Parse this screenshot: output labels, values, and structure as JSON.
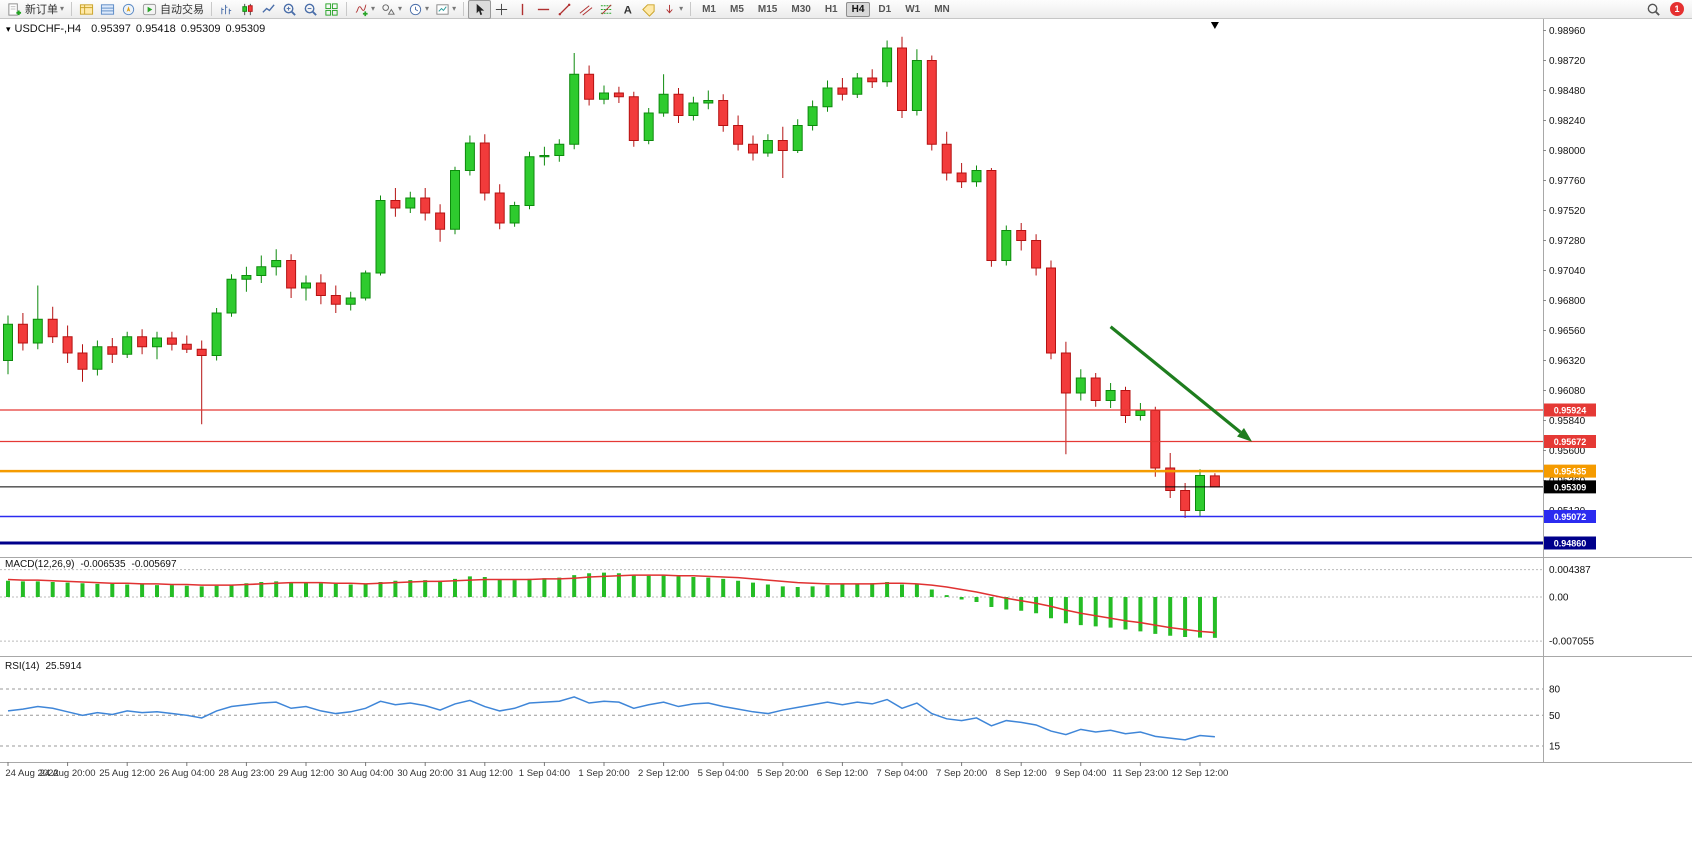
{
  "toolbar": {
    "new_order": "新订单",
    "algo_trading": "自动交易",
    "timeframes": [
      "M1",
      "M5",
      "M15",
      "M30",
      "H1",
      "H4",
      "D1",
      "W1",
      "MN"
    ],
    "active_timeframe": "H4",
    "notification_count": "1",
    "icons": [
      "new-order",
      "market-watch",
      "data-window",
      "navigator",
      "algo-trading",
      "bar-chart",
      "candlestick-chart",
      "line-chart",
      "zoom-in",
      "zoom-out",
      "tile-windows",
      "indicators",
      "objects",
      "period-clock",
      "chart-settings",
      "cursor",
      "crosshair",
      "vertical-line",
      "horizontal-line",
      "trendline",
      "equidistant-channel",
      "fibonacci",
      "text",
      "label",
      "arrows",
      "search",
      "notifications"
    ]
  },
  "chart_header": {
    "symbol_period": "USDCHF-,H4",
    "open": "0.95397",
    "high": "0.95418",
    "low": "0.95309",
    "close": "0.95309"
  },
  "chart_data": [
    {
      "type": "candlestick",
      "title": "USDCHF-,H4",
      "up_color": "#2ecb2e",
      "down_color": "#f23b3b",
      "candles": [
        [
          0.9632,
          0.9668,
          0.9621,
          0.9661
        ],
        [
          0.9661,
          0.967,
          0.964,
          0.9646
        ],
        [
          0.9646,
          0.9692,
          0.9641,
          0.9665
        ],
        [
          0.9665,
          0.9675,
          0.9646,
          0.9651
        ],
        [
          0.9651,
          0.966,
          0.963,
          0.9638
        ],
        [
          0.9638,
          0.9645,
          0.9615,
          0.9625
        ],
        [
          0.9625,
          0.9648,
          0.962,
          0.9643
        ],
        [
          0.9643,
          0.965,
          0.963,
          0.9637
        ],
        [
          0.9637,
          0.9655,
          0.9634,
          0.9651
        ],
        [
          0.9651,
          0.9657,
          0.9637,
          0.9643
        ],
        [
          0.9643,
          0.9655,
          0.9633,
          0.965
        ],
        [
          0.965,
          0.9655,
          0.964,
          0.9645
        ],
        [
          0.9645,
          0.9652,
          0.9638,
          0.9641
        ],
        [
          0.9641,
          0.9648,
          0.9581,
          0.9636
        ],
        [
          0.9636,
          0.9674,
          0.9632,
          0.967
        ],
        [
          0.967,
          0.9701,
          0.9667,
          0.9697
        ],
        [
          0.9697,
          0.9707,
          0.9687,
          0.97
        ],
        [
          0.97,
          0.9716,
          0.9694,
          0.9707
        ],
        [
          0.9707,
          0.9721,
          0.97,
          0.9712
        ],
        [
          0.9712,
          0.9717,
          0.9682,
          0.969
        ],
        [
          0.969,
          0.97,
          0.968,
          0.9694
        ],
        [
          0.9694,
          0.9701,
          0.9677,
          0.9684
        ],
        [
          0.9684,
          0.9692,
          0.967,
          0.9677
        ],
        [
          0.9677,
          0.9687,
          0.9672,
          0.9682
        ],
        [
          0.9682,
          0.9704,
          0.968,
          0.9702
        ],
        [
          0.9702,
          0.9764,
          0.97,
          0.976
        ],
        [
          0.976,
          0.977,
          0.9747,
          0.9754
        ],
        [
          0.9754,
          0.9767,
          0.975,
          0.9762
        ],
        [
          0.9762,
          0.977,
          0.9744,
          0.975
        ],
        [
          0.975,
          0.9757,
          0.9727,
          0.9737
        ],
        [
          0.9737,
          0.9787,
          0.9733,
          0.9784
        ],
        [
          0.9784,
          0.9812,
          0.978,
          0.9806
        ],
        [
          0.9806,
          0.9813,
          0.976,
          0.9766
        ],
        [
          0.9766,
          0.9773,
          0.9737,
          0.9742
        ],
        [
          0.9742,
          0.9759,
          0.9739,
          0.9756
        ],
        [
          0.9756,
          0.9799,
          0.9753,
          0.9795
        ],
        [
          0.9795,
          0.9803,
          0.9788,
          0.9796
        ],
        [
          0.9796,
          0.9809,
          0.9791,
          0.9805
        ],
        [
          0.9805,
          0.9878,
          0.9801,
          0.9861
        ],
        [
          0.9861,
          0.9868,
          0.9836,
          0.9841
        ],
        [
          0.9841,
          0.9852,
          0.9837,
          0.9846
        ],
        [
          0.9846,
          0.9851,
          0.9838,
          0.9843
        ],
        [
          0.9843,
          0.9847,
          0.9803,
          0.9808
        ],
        [
          0.9808,
          0.9834,
          0.9805,
          0.983
        ],
        [
          0.983,
          0.9861,
          0.9827,
          0.9845
        ],
        [
          0.9845,
          0.985,
          0.9822,
          0.9828
        ],
        [
          0.9828,
          0.9843,
          0.9824,
          0.9838
        ],
        [
          0.9838,
          0.9848,
          0.9833,
          0.984
        ],
        [
          0.984,
          0.9845,
          0.9815,
          0.982
        ],
        [
          0.982,
          0.9828,
          0.98,
          0.9805
        ],
        [
          0.9805,
          0.9812,
          0.9792,
          0.9798
        ],
        [
          0.9798,
          0.9813,
          0.9795,
          0.9808
        ],
        [
          0.9808,
          0.9819,
          0.9778,
          0.98
        ],
        [
          0.98,
          0.9825,
          0.9798,
          0.982
        ],
        [
          0.982,
          0.984,
          0.9816,
          0.9835
        ],
        [
          0.9835,
          0.9856,
          0.9831,
          0.985
        ],
        [
          0.985,
          0.9858,
          0.984,
          0.9845
        ],
        [
          0.9845,
          0.9862,
          0.9842,
          0.9858
        ],
        [
          0.9858,
          0.9865,
          0.985,
          0.9855
        ],
        [
          0.9855,
          0.9888,
          0.9851,
          0.9882
        ],
        [
          0.9882,
          0.9891,
          0.9826,
          0.9832
        ],
        [
          0.9832,
          0.9881,
          0.9828,
          0.9872
        ],
        [
          0.9872,
          0.9876,
          0.98,
          0.9805
        ],
        [
          0.9805,
          0.9815,
          0.9776,
          0.9782
        ],
        [
          0.9782,
          0.979,
          0.977,
          0.9775
        ],
        [
          0.9775,
          0.9788,
          0.9771,
          0.9784
        ],
        [
          0.9784,
          0.9786,
          0.9707,
          0.9712
        ],
        [
          0.9712,
          0.974,
          0.9708,
          0.9736
        ],
        [
          0.9736,
          0.9742,
          0.972,
          0.9728
        ],
        [
          0.9728,
          0.9733,
          0.97,
          0.9706
        ],
        [
          0.9706,
          0.9712,
          0.9633,
          0.9638
        ],
        [
          0.9638,
          0.9647,
          0.9557,
          0.9606
        ],
        [
          0.9606,
          0.9625,
          0.96,
          0.9618
        ],
        [
          0.9618,
          0.9622,
          0.9595,
          0.96
        ],
        [
          0.96,
          0.9614,
          0.9594,
          0.9608
        ],
        [
          0.9608,
          0.9611,
          0.9582,
          0.9588
        ],
        [
          0.9588,
          0.9598,
          0.9584,
          0.9592
        ],
        [
          0.9592,
          0.9595,
          0.9539,
          0.9546
        ],
        [
          0.9546,
          0.9558,
          0.9522,
          0.9528
        ],
        [
          0.9528,
          0.9534,
          0.9506,
          0.9512
        ],
        [
          0.9512,
          0.9545,
          0.9507,
          0.954
        ],
        [
          0.95397,
          0.95418,
          0.95309,
          0.95309
        ]
      ],
      "x_labels": [
        "24 Aug 2022",
        "24 Aug 20:00",
        "25 Aug 12:00",
        "26 Aug 04:00",
        "28 Aug 23:00",
        "29 Aug 12:00",
        "30 Aug 04:00",
        "30 Aug 20:00",
        "31 Aug 12:00",
        "1 Sep 04:00",
        "1 Sep 20:00",
        "2 Sep 12:00",
        "5 Sep 04:00",
        "5 Sep 20:00",
        "6 Sep 12:00",
        "7 Sep 04:00",
        "7 Sep 20:00",
        "8 Sep 12:00",
        "9 Sep 04:00",
        "11 Sep 23:00",
        "12 Sep 12:00"
      ],
      "x_label_every_n_bars": 4,
      "y_axis_labels": [
        "0.98960",
        "0.98720",
        "0.98480",
        "0.98240",
        "0.98000",
        "0.97760",
        "0.97520",
        "0.97280",
        "0.97040",
        "0.96800",
        "0.96560",
        "0.96320",
        "0.96080",
        "0.95840",
        "0.95600",
        "0.95360",
        "0.95120"
      ],
      "hlines": [
        {
          "price": 0.95924,
          "label": "0.95924",
          "color": "#e53935",
          "width": 1.2
        },
        {
          "price": 0.95672,
          "label": "0.95672",
          "color": "#e53935",
          "width": 1.2
        },
        {
          "price": 0.95435,
          "label": "0.95435",
          "color": "#f59b00",
          "width": 2.5
        },
        {
          "price": 0.95309,
          "label": "0.95309",
          "color": "#000000",
          "width": 1
        },
        {
          "price": 0.95072,
          "label": "0.95072",
          "color": "#2b2bf0",
          "width": 1.5
        },
        {
          "price": 0.9486,
          "label": "0.94860",
          "color": "#00008b",
          "width": 3
        }
      ],
      "arrow_annotation": {
        "x1_bar": 74,
        "y1_price": 0.9659,
        "x2_bar": 83.5,
        "y2_price": 0.9567,
        "color": "#1e7d1e"
      },
      "last_bar_marker_bar": 81
    },
    {
      "type": "bar",
      "name": "MACD(12,26,9)",
      "current_values": [
        "-0.006535",
        "-0.005697"
      ],
      "axis_labels": [
        "0.004387",
        "0.00",
        "-0.007055"
      ],
      "histogram_color": "#25bd25",
      "signal_color": "#e03232",
      "histogram": [
        0.0026,
        0.0025,
        0.0025,
        0.0024,
        0.0023,
        0.0022,
        0.0021,
        0.0021,
        0.002,
        0.002,
        0.0019,
        0.0019,
        0.0018,
        0.0017,
        0.0018,
        0.002,
        0.0022,
        0.0024,
        0.0025,
        0.0024,
        0.0023,
        0.0022,
        0.0021,
        0.002,
        0.0021,
        0.0024,
        0.0026,
        0.0027,
        0.0027,
        0.0026,
        0.0029,
        0.0033,
        0.0032,
        0.0028,
        0.0027,
        0.0029,
        0.003,
        0.0031,
        0.0035,
        0.0038,
        0.0039,
        0.0038,
        0.0035,
        0.0034,
        0.0035,
        0.0033,
        0.0032,
        0.0031,
        0.0029,
        0.0026,
        0.0023,
        0.002,
        0.0017,
        0.0016,
        0.0017,
        0.0019,
        0.002,
        0.0021,
        0.0022,
        0.0024,
        0.002,
        0.0021,
        0.0012,
        0.0003,
        -0.0004,
        -0.0008,
        -0.0016,
        -0.002,
        -0.0022,
        -0.0026,
        -0.0034,
        -0.0042,
        -0.0045,
        -0.0047,
        -0.0049,
        -0.0052,
        -0.0055,
        -0.0059,
        -0.0062,
        -0.0064,
        -0.0065,
        -0.006535
      ],
      "signal": [
        0.0028,
        0.0027,
        0.0027,
        0.0026,
        0.0025,
        0.0024,
        0.0023,
        0.0022,
        0.0022,
        0.0021,
        0.0021,
        0.002,
        0.002,
        0.0019,
        0.0019,
        0.0019,
        0.002,
        0.0021,
        0.0022,
        0.0023,
        0.0023,
        0.0023,
        0.0022,
        0.0022,
        0.0021,
        0.0022,
        0.0023,
        0.0024,
        0.0025,
        0.0025,
        0.0026,
        0.0027,
        0.0028,
        0.0028,
        0.0028,
        0.0028,
        0.0029,
        0.0029,
        0.003,
        0.0032,
        0.0033,
        0.0034,
        0.0035,
        0.0035,
        0.0035,
        0.0034,
        0.0034,
        0.0033,
        0.0032,
        0.0031,
        0.0029,
        0.0027,
        0.0025,
        0.0023,
        0.0022,
        0.0021,
        0.0021,
        0.0021,
        0.0021,
        0.0022,
        0.0022,
        0.0021,
        0.0019,
        0.0016,
        0.0012,
        0.0008,
        0.0003,
        -0.0002,
        -0.0006,
        -0.001,
        -0.0015,
        -0.0021,
        -0.0026,
        -0.003,
        -0.0034,
        -0.0038,
        -0.0041,
        -0.0045,
        -0.0049,
        -0.0052,
        -0.0055,
        -0.005697
      ]
    },
    {
      "type": "line",
      "name": "RSI(14)",
      "current_value": "25.5914",
      "line_color": "#3f86d8",
      "levels": [
        80,
        50,
        15
      ],
      "values": [
        55,
        57,
        60,
        58,
        54,
        50,
        53,
        51,
        55,
        53,
        54,
        52,
        50,
        47,
        55,
        60,
        62,
        64,
        65,
        58,
        60,
        55,
        52,
        54,
        58,
        66,
        62,
        64,
        61,
        56,
        63,
        67,
        60,
        55,
        58,
        64,
        65,
        66,
        71,
        64,
        66,
        65,
        58,
        62,
        65,
        60,
        63,
        64,
        60,
        57,
        54,
        52,
        56,
        59,
        62,
        65,
        62,
        65,
        63,
        68,
        58,
        64,
        52,
        46,
        44,
        47,
        38,
        44,
        42,
        39,
        32,
        28,
        34,
        31,
        33,
        29,
        31,
        26,
        24,
        22,
        27,
        25.5914
      ]
    }
  ]
}
